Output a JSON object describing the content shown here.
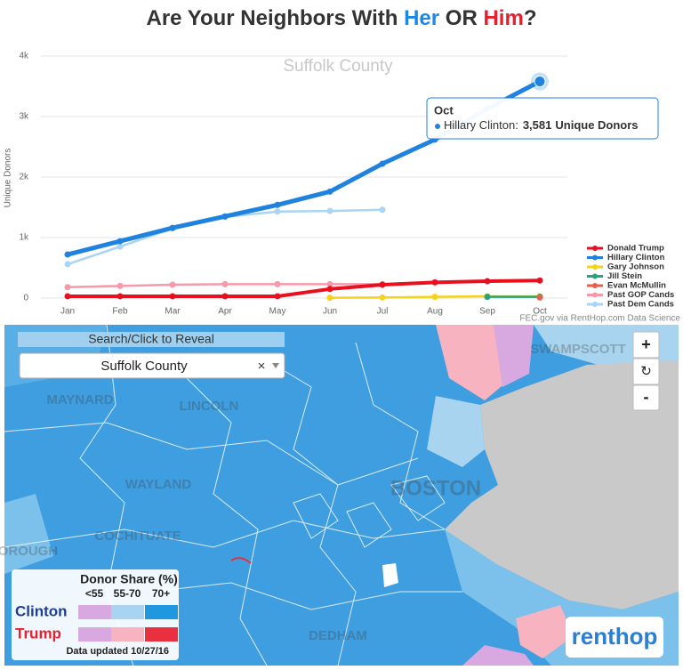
{
  "chart_data": {
    "type": "line",
    "title_parts": [
      {
        "text": "Are Your Neighbors With ",
        "color": "#333333"
      },
      {
        "text": "Her",
        "color": "#1e88e5"
      },
      {
        "text": " OR ",
        "color": "#333333"
      },
      {
        "text": "Him",
        "color": "#e5202f"
      },
      {
        "text": "?",
        "color": "#333333"
      }
    ],
    "subtitle": "Suffolk County",
    "y_label": "Unique Donors",
    "categories": [
      "Jan",
      "Feb",
      "Mar",
      "Apr",
      "May",
      "Jun",
      "Jul",
      "Aug",
      "Sep",
      "Oct"
    ],
    "series": [
      {
        "name": "Donald Trump",
        "color": "#e8101f",
        "values": [
          30,
          30,
          30,
          30,
          30,
          150,
          220,
          260,
          280,
          290
        ]
      },
      {
        "name": "Hillary Clinton",
        "color": "#1f82df",
        "values": [
          720,
          940,
          1160,
          1350,
          1540,
          1760,
          2220,
          2620,
          3130,
          3581
        ]
      },
      {
        "name": "Gary Johnson",
        "color": "#f5d21c",
        "values": [
          null,
          null,
          null,
          null,
          null,
          5,
          10,
          20,
          30,
          30
        ]
      },
      {
        "name": "Jill Stein",
        "color": "#2aa37a",
        "values": [
          null,
          null,
          null,
          null,
          null,
          null,
          null,
          null,
          20,
          20
        ]
      },
      {
        "name": "Evan McMullin",
        "color": "#e8604a",
        "values": [
          null,
          null,
          null,
          null,
          null,
          null,
          null,
          null,
          null,
          10
        ]
      },
      {
        "name": "Past GOP Cands",
        "color": "#f59aa8",
        "values": [
          180,
          200,
          220,
          230,
          230,
          230,
          230,
          null,
          null,
          null
        ]
      },
      {
        "name": "Past Dem Cands",
        "color": "#a8d4f5",
        "values": [
          560,
          850,
          1150,
          1340,
          1430,
          1440,
          1460,
          null,
          null,
          null
        ]
      }
    ],
    "ylim": [
      0,
      4000
    ],
    "yticks": [
      0,
      {
        "value": 1000,
        "label": "1k"
      },
      {
        "value": 2000,
        "label": "2k"
      },
      {
        "value": 3000,
        "label": "3k"
      },
      {
        "value": 4000,
        "label": "4k"
      }
    ],
    "grid": true,
    "legend": "right",
    "tooltip": {
      "label_suffix": ":",
      "value_label": "3,581",
      "unit": "Unique Donors"
    },
    "source": "FEC.gov via RentHop.com Data Science"
  },
  "map": {
    "search_label": "Search/Click to Reveal",
    "selected": "Suffolk County",
    "clear": "×",
    "zoom_in": "+",
    "reset": "↻",
    "zoom_out": "-",
    "places": [
      "MAYNARD",
      "LINCOLN",
      "WAYLAND",
      "COCHITUATE",
      "BOROUGH",
      "BOSTON",
      "DEDHAM",
      "SWAMPSCOTT"
    ],
    "legend": {
      "title": "Donor Share (%)",
      "bins": [
        "<55",
        "55-70",
        "70+"
      ],
      "rows": [
        {
          "name": "Clinton",
          "color": "#1c3f95",
          "swatches": [
            "#d8a9e0",
            "#a9d4ef",
            "#1f98df"
          ]
        },
        {
          "name": "Trump",
          "color": "#e5202f",
          "swatches": [
            "#d8a9e0",
            "#f7b3c0",
            "#e8303f"
          ]
        }
      ],
      "note": "Data updated 10/27/16"
    },
    "logo": "renthop"
  }
}
